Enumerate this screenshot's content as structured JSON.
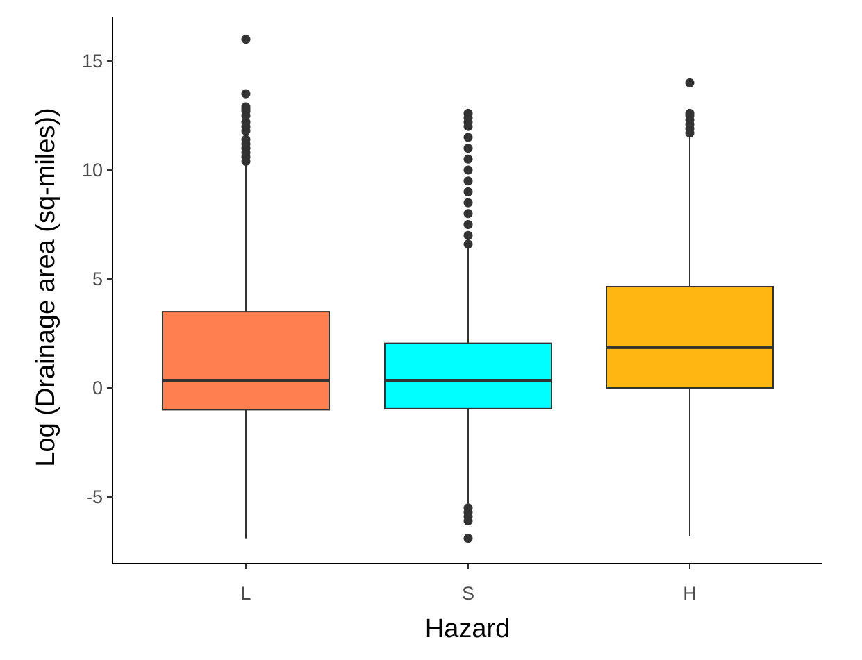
{
  "chart_data": {
    "type": "boxplot",
    "xlabel": "Hazard",
    "ylabel": "Log (Drainage area (sq-miles))",
    "categories": [
      "L",
      "S",
      "H"
    ],
    "ylim": [
      -8.2,
      16.9
    ],
    "yticks": [
      -5,
      0,
      5,
      10,
      15
    ],
    "yticklabels": [
      "-5",
      "0",
      "5",
      "10",
      "15"
    ],
    "grid": false,
    "legend": "none",
    "boxes": [
      {
        "category": "L",
        "color": "#FF7F50",
        "whisker_low": -6.9,
        "q1": -1.0,
        "median": 0.35,
        "q3": 3.5,
        "whisker_high": 10.3,
        "outliers": [
          10.4,
          10.6,
          10.8,
          11.0,
          11.2,
          11.4,
          11.8,
          12.0,
          12.2,
          12.5,
          12.7,
          12.8,
          12.9,
          13.5,
          16.0
        ]
      },
      {
        "category": "S",
        "color": "#00FFFF",
        "whisker_low": -5.3,
        "q1": -0.95,
        "median": 0.35,
        "q3": 2.05,
        "whisker_high": 6.5,
        "outliers": [
          -5.5,
          -5.7,
          -5.9,
          -6.1,
          -6.9,
          6.6,
          7.0,
          7.5,
          8.0,
          8.5,
          9.0,
          9.5,
          10.0,
          10.5,
          11.0,
          11.5,
          12.0,
          12.2,
          12.4,
          12.6
        ]
      },
      {
        "category": "H",
        "color": "#FFB612",
        "whisker_low": -6.8,
        "q1": 0.0,
        "median": 1.85,
        "q3": 4.65,
        "whisker_high": 11.6,
        "outliers": [
          11.7,
          11.9,
          12.1,
          12.3,
          12.5,
          12.6,
          14.0
        ]
      }
    ]
  }
}
